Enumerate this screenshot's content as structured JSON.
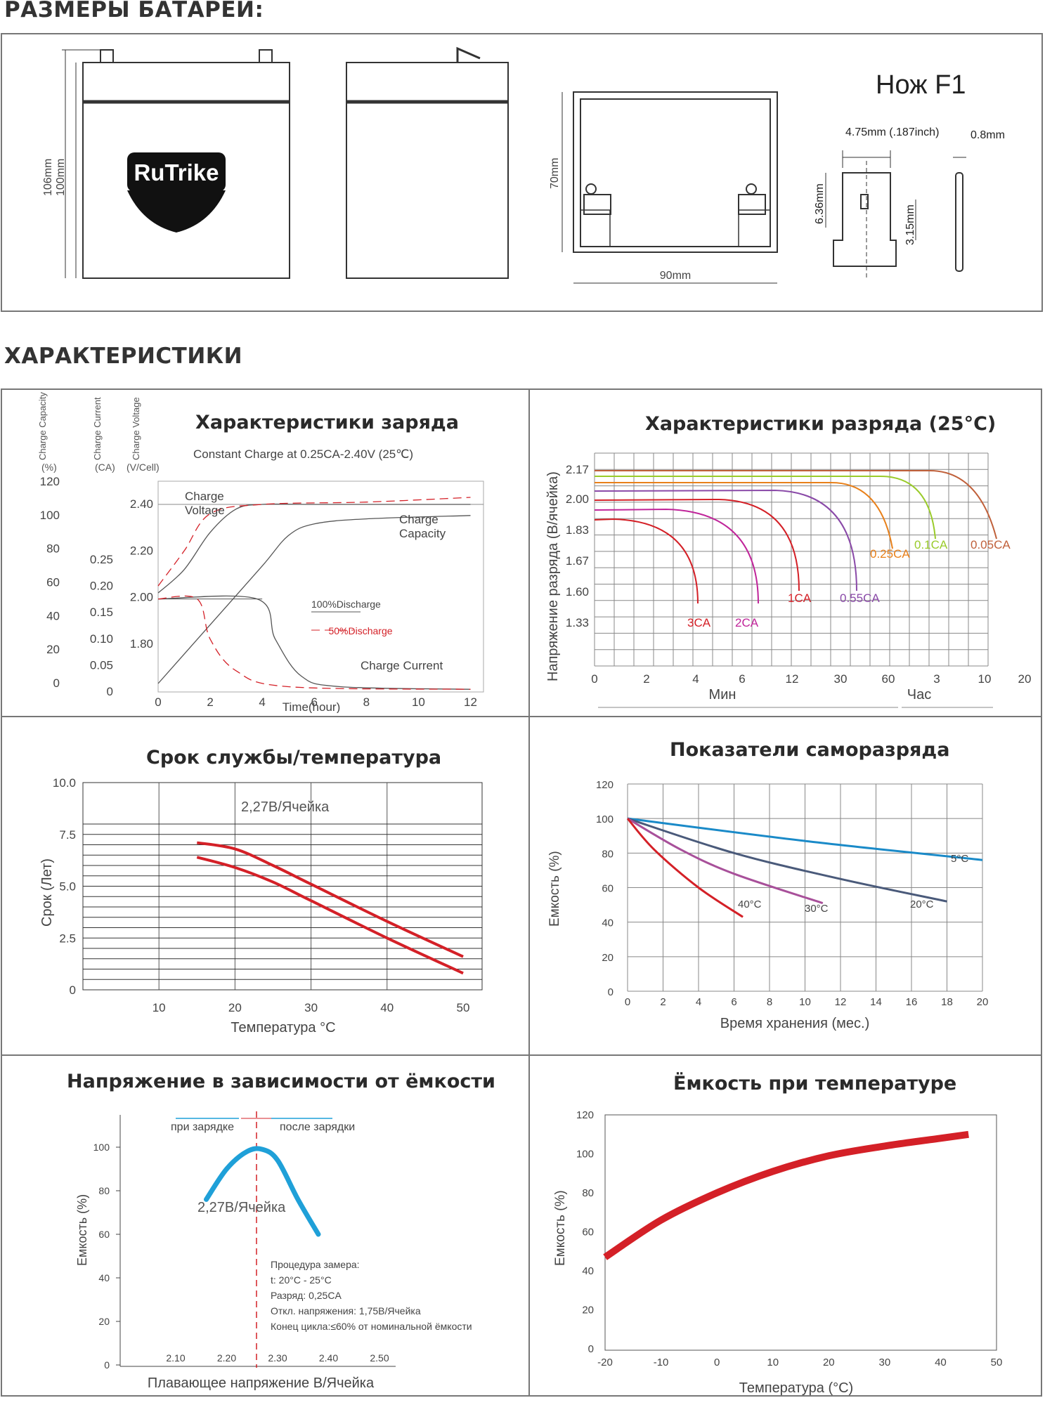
{
  "sections": {
    "dimensions_title": "РАЗМЕРЫ БАТАРЕИ:",
    "specs_title": "ХАРАКТЕРИСТИКИ"
  },
  "dimensions": {
    "height_outer": "106mm",
    "height_inner": "100mm",
    "brand": "RuTrike",
    "depth": "70mm",
    "width": "90mm",
    "terminal_title": "Нож F1",
    "terminal_width": "4.75mm (.187inch)",
    "terminal_thickness": "0.8mm",
    "terminal_height": "6.36mm",
    "terminal_hole": "3.15mm"
  },
  "colors": {
    "red": "#d42027",
    "blue": "#1fa0d8",
    "navy": "#4a5a7a",
    "purple": "#a8509a",
    "lightblue": "#1a8ac8"
  },
  "chart_data": [
    {
      "type": "line",
      "title": "Характеристики заряда",
      "subtitle": "Constant Charge at 0.25CA-2.40V  (25℃)",
      "axis_headers": [
        "Charge Capacity",
        "Charge Current",
        "Charge Voltage"
      ],
      "axis_units": [
        "(%)",
        "(CA)",
        "(V/Cell)"
      ],
      "xlabel": "Time(hour)",
      "x_ticks": [
        "0",
        "2",
        "4",
        "6",
        "8",
        "10",
        "12"
      ],
      "capacity_ticks": [
        "120",
        "100",
        "80",
        "60",
        "40",
        "20",
        "0"
      ],
      "current_ticks": [
        "0.25",
        "0.20",
        "0.15",
        "0.10",
        "0.05",
        "0"
      ],
      "voltage_ticks": [
        "2.40",
        "2.20",
        "2.00",
        "1.80"
      ],
      "legend": [
        "100%Discharge",
        "50%Discharge"
      ],
      "annotations": [
        "Charge",
        "Voltage",
        "Charge",
        "Capacity",
        "Charge Current"
      ],
      "series": [
        {
          "name": "Charge Voltage 100%",
          "x": [
            0,
            1,
            2,
            3,
            4,
            6,
            12
          ],
          "y": [
            2.02,
            2.12,
            2.28,
            2.38,
            2.4,
            2.4,
            2.4
          ]
        },
        {
          "name": "Charge Voltage 50%",
          "x": [
            0,
            1,
            2,
            4,
            8,
            12
          ],
          "y": [
            2.05,
            2.2,
            2.36,
            2.4,
            2.41,
            2.43
          ]
        },
        {
          "name": "Charge Capacity 100%",
          "x": [
            0,
            2,
            4,
            5,
            6,
            8,
            12
          ],
          "y": [
            0,
            35,
            70,
            88,
            95,
            98,
            100
          ]
        },
        {
          "name": "Charge Current 100%",
          "x": [
            0,
            3.8,
            4.5,
            5.5,
            7,
            12
          ],
          "y": [
            0.176,
            0.176,
            0.1,
            0.03,
            0.01,
            0.005
          ]
        },
        {
          "name": "Charge Current 50%",
          "x": [
            0,
            1.5,
            2,
            3,
            5,
            12
          ],
          "y": [
            0.176,
            0.176,
            0.1,
            0.04,
            0.01,
            0.005
          ]
        }
      ]
    },
    {
      "type": "line",
      "title": "Характеристики разряда (25°C)",
      "ylabel": "Напряжение разряда (В/ячейка)",
      "y_ticks": [
        "2.17",
        "2.00",
        "1.83",
        "1.67",
        "1.60",
        "1.33"
      ],
      "x_ticks": [
        "0",
        "2",
        "4",
        "6",
        "12",
        "30",
        "60",
        "3",
        "10",
        "20"
      ],
      "x_units": [
        "Мин",
        "Час"
      ],
      "series": [
        {
          "name": "3CA",
          "color": "#d42027",
          "end_voltage": 1.6
        },
        {
          "name": "2CA",
          "color": "#c0259a",
          "end_voltage": 1.6
        },
        {
          "name": "1CA",
          "color": "#d42027",
          "end_voltage": 1.67
        },
        {
          "name": "0.55CA",
          "color": "#8a4aa8",
          "end_voltage": 1.67
        },
        {
          "name": "0.25CA",
          "color": "#e8801a",
          "end_voltage": 1.75
        },
        {
          "name": "0.1CA",
          "color": "#9acb2a",
          "end_voltage": 1.75
        },
        {
          "name": "0.05CA",
          "color": "#c0603a",
          "end_voltage": 1.75
        }
      ]
    },
    {
      "type": "line",
      "title": "Срок службы/температура",
      "ylabel": "Срок (Лет)",
      "xlabel": "Температура °C",
      "y_ticks": [
        "10.0",
        "7.5",
        "5.0",
        "2.5",
        "0"
      ],
      "x_ticks": [
        "10",
        "20",
        "30",
        "40",
        "50"
      ],
      "annotation": "2,27В/Ячейка",
      "series": [
        {
          "name": "upper",
          "x": [
            15,
            20,
            25,
            30,
            40,
            50
          ],
          "y": [
            7.1,
            6.8,
            6.0,
            5.1,
            3.3,
            1.6
          ]
        },
        {
          "name": "lower",
          "x": [
            15,
            20,
            25,
            30,
            40,
            50
          ],
          "y": [
            6.4,
            5.9,
            5.2,
            4.3,
            2.5,
            0.8
          ]
        }
      ]
    },
    {
      "type": "line",
      "title": "Показатели саморазряда",
      "ylabel": "Емкость (%)",
      "xlabel": "Время хранения (мес.)",
      "y_ticks": [
        "120",
        "100",
        "80",
        "60",
        "40",
        "20",
        "0"
      ],
      "x_ticks": [
        "0",
        "2",
        "4",
        "6",
        "8",
        "10",
        "12",
        "14",
        "16",
        "18",
        "20"
      ],
      "series": [
        {
          "name": "5°C",
          "x": [
            0,
            10,
            20
          ],
          "y": [
            100,
            87,
            76
          ]
        },
        {
          "name": "20°C",
          "x": [
            0,
            6,
            12,
            18
          ],
          "y": [
            100,
            80,
            65,
            52
          ]
        },
        {
          "name": "30°C",
          "x": [
            0,
            3,
            6,
            11
          ],
          "y": [
            100,
            82,
            68,
            51
          ]
        },
        {
          "name": "40°C",
          "x": [
            0,
            1.5,
            4,
            6.5
          ],
          "y": [
            100,
            82,
            60,
            43
          ]
        }
      ]
    },
    {
      "type": "line",
      "title": "Напряжение в зависимости от ёмкости",
      "ylabel": "Емкость (%)",
      "xlabel": "Плавающее напряжение В/Ячейка",
      "y_ticks": [
        "100",
        "80",
        "60",
        "40",
        "20",
        "0"
      ],
      "x_ticks": [
        "2.10",
        "2.20",
        "2.30",
        "2.40",
        "2.50"
      ],
      "labels": [
        "при зарядке",
        "после зарядки"
      ],
      "annotation": "2,27В/Ячейка",
      "procedure": [
        "Процедура замера:",
        "t: 20°C - 25°C",
        "Разряд: 0,25CA",
        "Откл. напряжения: 1,75В/Ячейка",
        "Конец цикла:≤60% от номинальной ёмкости"
      ],
      "series": [
        {
          "name": "capacity",
          "x": [
            2.16,
            2.2,
            2.24,
            2.27,
            2.3,
            2.34,
            2.38
          ],
          "y": [
            76,
            90,
            98,
            99,
            94,
            76,
            60
          ]
        }
      ]
    },
    {
      "type": "line",
      "title": "Ёмкость при температуре",
      "ylabel": "Емкость (%)",
      "xlabel": "Температура (°C)",
      "y_ticks": [
        "120",
        "100",
        "80",
        "60",
        "40",
        "20",
        "0"
      ],
      "x_ticks": [
        "-20",
        "-10",
        "0",
        "10",
        "20",
        "30",
        "40",
        "50"
      ],
      "series": [
        {
          "name": "capacity",
          "x": [
            -20,
            -10,
            0,
            10,
            20,
            30,
            40,
            45
          ],
          "y": [
            47,
            66,
            80,
            91,
            99,
            104,
            108,
            110
          ]
        }
      ]
    }
  ]
}
